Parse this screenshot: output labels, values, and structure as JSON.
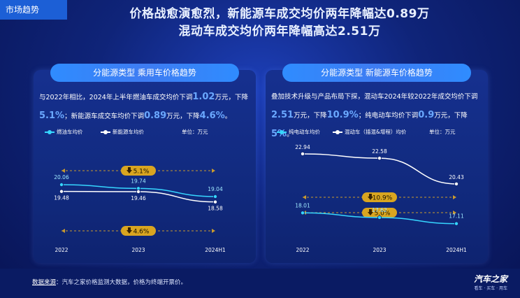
{
  "tag": "市场趋势",
  "title": {
    "line1": "价格战愈演愈烈，新能源车成交均价两年降幅达0.89万",
    "line2": "混动车成交均价两年降幅高达2.51万"
  },
  "left_panel": {
    "title": "分能源类型 乘用车价格趋势",
    "desc": [
      "与2022年相比，2024年上半年燃油车成交均价下调",
      "1.02",
      "万元，下降",
      "5.1%",
      "；新能源车成交车均价下调",
      "0.89",
      "万元，下降",
      "4.6%",
      "。"
    ],
    "unit": "单位：万元"
  },
  "right_panel": {
    "title": "分能源类型 新能源车价格趋势",
    "desc": [
      "叠加技术升级与产品布局下探，混动车2024年较2022年成交均价下调",
      "2.51",
      "万元，下降",
      "10.9%",
      "；纯电动车均价下调",
      "0.9",
      "万元，下降",
      "5%",
      "。"
    ],
    "unit": "单位：万元"
  },
  "source": {
    "label": "数据来源",
    "text": "：汽车之家价格监测大数据，价格为终端开票价。"
  },
  "logo": {
    "name": "汽车之家",
    "sub": "看车 · 买车 · 用车"
  },
  "colors": {
    "cyan": "#36d6ff",
    "white": "#ffffff",
    "badge": "#d9a520",
    "arrow": "#c99a2e"
  },
  "chart_data": [
    {
      "type": "line",
      "categories": [
        "2022",
        "2023",
        "2024H1"
      ],
      "series": [
        {
          "name": "燃油车均价",
          "color": "#36d6ff",
          "values": [
            20.06,
            19.74,
            19.04
          ]
        },
        {
          "name": "新能源车均价",
          "color": "#ffffff",
          "values": [
            19.48,
            19.46,
            18.58
          ]
        }
      ],
      "annotations": [
        {
          "text": "5.1%",
          "series": 0
        },
        {
          "text": "4.6%",
          "series": 1
        }
      ],
      "ylim": [
        17,
        21.5
      ]
    },
    {
      "type": "line",
      "categories": [
        "2022",
        "2023",
        "2024H1"
      ],
      "series": [
        {
          "name": "纯电动车均价",
          "color": "#36d6ff",
          "values": [
            18.01,
            17.62,
            17.11
          ]
        },
        {
          "name": "混动车（插混&增程）均价",
          "color": "#ffffff",
          "values": [
            22.94,
            22.58,
            20.43
          ]
        }
      ],
      "annotations": [
        {
          "text": "10.9%",
          "series": 1
        },
        {
          "text": "5.0%",
          "series": 0
        }
      ],
      "ylim": [
        16.8,
        24.4
      ]
    }
  ]
}
